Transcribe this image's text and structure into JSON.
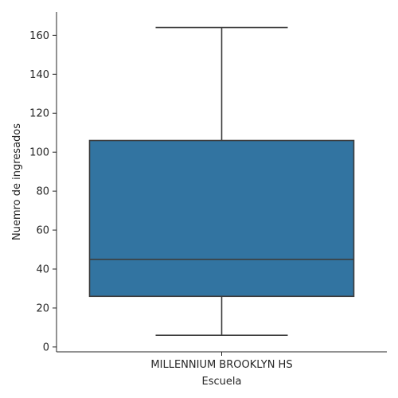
{
  "chart_data": {
    "type": "box",
    "xlabel": "Escuela",
    "ylabel": "Nuemro de ingresados",
    "ylim": [
      -2.5,
      172
    ],
    "yticks": [
      0,
      20,
      40,
      60,
      80,
      100,
      120,
      140,
      160
    ],
    "categories": [
      "MILLENNIUM BROOKLYN HS"
    ],
    "boxes": [
      {
        "category": "MILLENNIUM BROOKLYN HS",
        "whisker_low": 6,
        "q1": 26,
        "median": 45,
        "q3": 106,
        "whisker_high": 164
      }
    ],
    "colors": {
      "box_fill": "#3274a1",
      "line": "#3d3d3d",
      "axis": "#262626"
    },
    "grid": false
  }
}
